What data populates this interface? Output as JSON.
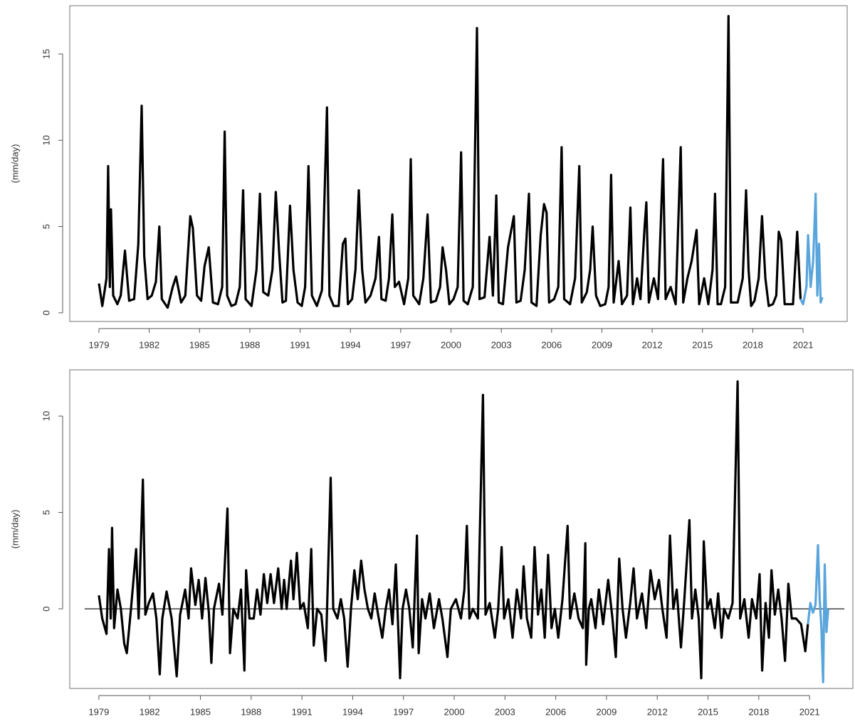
{
  "chart_data": [
    {
      "type": "line",
      "ylabel": "(mm/day)",
      "xlim": [
        1977.26,
        2023.63
      ],
      "ylim": [
        -0.5,
        17.8
      ],
      "xticks": [
        1979,
        1982,
        1985,
        1988,
        1991,
        1994,
        1997,
        2000,
        2003,
        2006,
        2009,
        2012,
        2015,
        2018,
        2021
      ],
      "yticks": [
        0,
        5,
        10,
        15
      ],
      "series": [
        {
          "color": "#000000",
          "x": [
            1979.0,
            1979.2,
            1979.45,
            1979.55,
            1979.65,
            1979.72,
            1979.85,
            1980.1,
            1980.3,
            1980.55,
            1980.8,
            1981.1,
            1981.35,
            1981.55,
            1981.7,
            1981.9,
            1982.15,
            1982.4,
            1982.6,
            1982.75,
            1983.1,
            1983.4,
            1983.6,
            1983.9,
            1984.15,
            1984.45,
            1984.6,
            1984.85,
            1985.1,
            1985.3,
            1985.55,
            1985.8,
            1986.1,
            1986.35,
            1986.5,
            1986.65,
            1986.9,
            1987.15,
            1987.4,
            1987.6,
            1987.75,
            1988.1,
            1988.4,
            1988.6,
            1988.8,
            1989.1,
            1989.35,
            1989.55,
            1989.75,
            1989.95,
            1990.15,
            1990.4,
            1990.6,
            1990.85,
            1991.1,
            1991.3,
            1991.5,
            1991.7,
            1992.0,
            1992.3,
            1992.6,
            1992.75,
            1993.0,
            1993.3,
            1993.55,
            1993.7,
            1993.85,
            1994.1,
            1994.3,
            1994.5,
            1994.7,
            1994.9,
            1995.2,
            1995.5,
            1995.7,
            1995.85,
            1996.1,
            1996.3,
            1996.5,
            1996.65,
            1996.9,
            1997.2,
            1997.45,
            1997.6,
            1997.75,
            1998.1,
            1998.35,
            1998.6,
            1998.8,
            1999.1,
            1999.35,
            1999.5,
            1999.7,
            1999.9,
            2000.15,
            2000.4,
            2000.6,
            2000.75,
            2001.0,
            2001.3,
            2001.55,
            2001.7,
            2002.0,
            2002.3,
            2002.5,
            2002.7,
            2002.85,
            2003.1,
            2003.4,
            2003.75,
            2003.9,
            2004.15,
            2004.4,
            2004.65,
            2004.8,
            2005.1,
            2005.35,
            2005.55,
            2005.7,
            2005.85,
            2006.15,
            2006.4,
            2006.6,
            2006.75,
            2007.1,
            2007.4,
            2007.65,
            2007.8,
            2008.1,
            2008.3,
            2008.45,
            2008.65,
            2008.9,
            2009.2,
            2009.4,
            2009.55,
            2009.7,
            2010.0,
            2010.2,
            2010.5,
            2010.7,
            2010.85,
            2011.1,
            2011.3,
            2011.55,
            2011.65,
            2011.8,
            2012.1,
            2012.35,
            2012.65,
            2012.8,
            2013.1,
            2013.4,
            2013.7,
            2013.85,
            2014.1,
            2014.35,
            2014.65,
            2014.8,
            2015.1,
            2015.35,
            2015.6,
            2015.75,
            2015.9,
            2016.1,
            2016.35,
            2016.55,
            2016.7,
            2017.1,
            2017.4,
            2017.6,
            2017.75,
            2017.9,
            2018.1,
            2018.35,
            2018.55,
            2018.75,
            2018.95,
            2019.2,
            2019.4,
            2019.55,
            2019.7,
            2019.9,
            2020.15,
            2020.4,
            2020.65,
            2020.85
          ],
          "values": [
            1.7,
            0.4,
            2.0,
            8.5,
            1.5,
            6.0,
            1.0,
            0.5,
            1.0,
            3.6,
            0.7,
            0.8,
            4.0,
            12.0,
            3.3,
            0.8,
            1.0,
            1.8,
            5.0,
            0.8,
            0.3,
            1.5,
            2.1,
            0.6,
            1.0,
            5.6,
            4.9,
            1.0,
            0.7,
            2.7,
            3.8,
            0.6,
            0.5,
            1.5,
            10.5,
            1.0,
            0.4,
            0.5,
            1.5,
            7.1,
            0.8,
            0.4,
            2.5,
            6.9,
            1.2,
            1.0,
            2.5,
            7.0,
            3.5,
            0.6,
            0.7,
            6.2,
            2.5,
            0.6,
            0.4,
            1.5,
            8.5,
            1.0,
            0.4,
            1.3,
            11.9,
            1.0,
            0.4,
            0.4,
            4.0,
            4.3,
            0.5,
            0.8,
            2.5,
            7.1,
            2.5,
            0.6,
            1.0,
            2.0,
            4.4,
            0.8,
            0.7,
            2.0,
            5.7,
            1.5,
            1.8,
            0.5,
            2.0,
            8.9,
            1.0,
            0.5,
            2.0,
            5.7,
            0.6,
            0.7,
            1.5,
            3.8,
            2.5,
            0.5,
            0.8,
            1.5,
            9.3,
            0.7,
            0.5,
            1.5,
            16.5,
            0.8,
            0.9,
            4.4,
            1.0,
            6.8,
            0.6,
            0.5,
            3.8,
            5.6,
            0.6,
            0.7,
            2.5,
            6.9,
            0.6,
            0.4,
            4.5,
            6.3,
            5.8,
            0.6,
            0.8,
            1.5,
            9.6,
            0.8,
            0.5,
            2.0,
            8.5,
            0.6,
            1.2,
            2.5,
            5.0,
            1.0,
            0.4,
            0.5,
            1.5,
            8.0,
            0.6,
            3.0,
            0.5,
            1.0,
            6.1,
            0.5,
            2.0,
            0.8,
            5.0,
            6.4,
            0.6,
            2.0,
            0.8,
            8.9,
            0.8,
            1.5,
            0.5,
            9.6,
            0.6,
            2.0,
            3.0,
            4.8,
            0.5,
            2.0,
            0.5,
            2.5,
            6.9,
            0.5,
            0.5,
            1.5,
            17.2,
            0.6,
            0.6,
            2.0,
            7.1,
            2.5,
            0.4,
            0.7,
            2.0,
            5.6,
            2.0,
            0.4,
            0.5,
            1.0,
            4.7,
            4.2,
            0.5,
            0.5,
            0.5,
            4.7,
            0.8
          ]
        },
        {
          "color": "#5aa5dc",
          "x": [
            2020.85,
            2021.0,
            2021.2,
            2021.3,
            2021.45,
            2021.6,
            2021.75,
            2021.85,
            2021.95,
            2022.05,
            2022.15
          ],
          "values": [
            0.8,
            0.5,
            1.5,
            4.5,
            1.5,
            3.0,
            6.9,
            1.0,
            4.0,
            0.6,
            0.9
          ]
        }
      ]
    },
    {
      "type": "line",
      "ylabel": "(mm/day)",
      "xlim": [
        1977.28,
        2023.56
      ],
      "ylim": [
        -4.13,
        12.4
      ],
      "hline": 0,
      "xticks": [
        1979,
        1982,
        1985,
        1988,
        1991,
        1994,
        1997,
        2000,
        2003,
        2006,
        2009,
        2012,
        2015,
        2018,
        2021
      ],
      "yticks": [
        0,
        5,
        10
      ],
      "series": [
        {
          "color": "#000000",
          "x": [
            1979.0,
            1979.2,
            1979.45,
            1979.6,
            1979.7,
            1979.78,
            1979.9,
            1980.1,
            1980.3,
            1980.5,
            1980.65,
            1980.9,
            1981.2,
            1981.35,
            1981.6,
            1981.75,
            1981.95,
            1982.2,
            1982.4,
            1982.6,
            1982.75,
            1983.0,
            1983.3,
            1983.6,
            1983.8,
            1984.1,
            1984.3,
            1984.45,
            1984.7,
            1984.9,
            1985.1,
            1985.3,
            1985.5,
            1985.65,
            1985.8,
            1986.1,
            1986.3,
            1986.6,
            1986.75,
            1986.95,
            1987.2,
            1987.4,
            1987.6,
            1987.7,
            1987.9,
            1988.15,
            1988.35,
            1988.55,
            1988.75,
            1988.95,
            1989.15,
            1989.35,
            1989.6,
            1989.8,
            1989.95,
            1990.1,
            1990.35,
            1990.5,
            1990.7,
            1990.9,
            1991.1,
            1991.35,
            1991.55,
            1991.7,
            1991.9,
            1992.15,
            1992.4,
            1992.7,
            1992.85,
            1993.1,
            1993.3,
            1993.5,
            1993.7,
            1993.9,
            1994.1,
            1994.3,
            1994.5,
            1994.7,
            1994.9,
            1995.1,
            1995.3,
            1995.5,
            1995.75,
            1995.95,
            1996.15,
            1996.35,
            1996.55,
            1996.8,
            1996.95,
            1997.15,
            1997.35,
            1997.55,
            1997.8,
            1997.9,
            1998.1,
            1998.3,
            1998.55,
            1998.8,
            1999.1,
            1999.3,
            1999.6,
            1999.8,
            2000.1,
            2000.4,
            2000.6,
            2000.75,
            2000.9,
            2001.1,
            2001.4,
            2001.7,
            2001.85,
            2002.1,
            2002.4,
            2002.6,
            2002.8,
            2002.95,
            2003.2,
            2003.45,
            2003.7,
            2003.95,
            2004.1,
            2004.3,
            2004.55,
            2004.75,
            2004.95,
            2005.15,
            2005.35,
            2005.55,
            2005.75,
            2005.95,
            2006.15,
            2006.4,
            2006.7,
            2006.85,
            2007.1,
            2007.35,
            2007.6,
            2007.75,
            2007.8,
            2007.95,
            2008.1,
            2008.35,
            2008.55,
            2008.8,
            2009.1,
            2009.35,
            2009.55,
            2009.75,
            2009.95,
            2010.15,
            2010.4,
            2010.6,
            2010.8,
            2011.1,
            2011.35,
            2011.6,
            2011.85,
            2012.1,
            2012.3,
            2012.55,
            2012.75,
            2012.95,
            2013.15,
            2013.4,
            2013.6,
            2013.9,
            2014.05,
            2014.25,
            2014.45,
            2014.6,
            2014.75,
            2014.95,
            2015.15,
            2015.4,
            2015.6,
            2015.8,
            2015.95,
            2016.2,
            2016.45,
            2016.75,
            2016.9,
            2017.15,
            2017.4,
            2017.6,
            2017.85,
            2018.05,
            2018.2,
            2018.4,
            2018.6,
            2018.75,
            2018.95,
            2019.15,
            2019.35,
            2019.55,
            2019.75,
            2019.95,
            2020.2,
            2020.5,
            2020.75,
            2020.9
          ],
          "values": [
            0.7,
            -0.5,
            -1.3,
            3.1,
            -0.5,
            4.2,
            -1.0,
            1.0,
            0.0,
            -1.8,
            -2.3,
            0.0,
            3.1,
            -0.5,
            6.7,
            -0.3,
            0.3,
            0.8,
            -0.5,
            -3.4,
            -0.5,
            0.9,
            -0.5,
            -3.5,
            -0.3,
            1.0,
            -0.5,
            2.1,
            0.2,
            1.5,
            -0.5,
            1.6,
            -0.2,
            -2.8,
            0.0,
            1.3,
            -0.3,
            5.2,
            -2.3,
            0.0,
            -0.5,
            1.0,
            -3.2,
            2.0,
            -0.5,
            -0.5,
            1.0,
            -0.3,
            1.8,
            0.3,
            1.8,
            0.3,
            2.1,
            0.0,
            1.5,
            0.0,
            2.5,
            0.5,
            2.9,
            0.0,
            0.3,
            -1.0,
            3.1,
            -1.9,
            0.0,
            -0.3,
            -2.7,
            6.8,
            0.0,
            -0.5,
            0.5,
            -0.5,
            -3.0,
            0.0,
            2.0,
            0.5,
            2.5,
            1.0,
            0.0,
            -0.5,
            0.8,
            -0.3,
            -1.5,
            0.0,
            1.0,
            -0.8,
            2.3,
            -3.6,
            0.0,
            1.0,
            0.0,
            -2.0,
            3.8,
            -2.3,
            0.5,
            -0.5,
            0.8,
            -1.0,
            0.5,
            -0.5,
            -2.5,
            0.0,
            0.5,
            -0.5,
            1.0,
            4.3,
            -0.5,
            0.0,
            -0.5,
            11.1,
            -0.3,
            0.3,
            -1.5,
            0.0,
            3.2,
            -0.5,
            0.5,
            -1.5,
            1.0,
            -0.5,
            2.2,
            -0.5,
            -1.5,
            3.2,
            -0.3,
            1.0,
            -1.5,
            2.8,
            -1.0,
            0.0,
            -1.5,
            0.5,
            4.3,
            -0.5,
            0.8,
            -0.5,
            -1.0,
            3.4,
            -2.9,
            0.0,
            0.5,
            -1.0,
            1.0,
            -0.8,
            1.5,
            -0.5,
            -2.5,
            2.6,
            0.0,
            -1.5,
            0.3,
            2.1,
            -0.5,
            0.8,
            -1.0,
            2.0,
            0.5,
            1.5,
            0.0,
            -1.5,
            3.8,
            0.0,
            1.0,
            -2.0,
            0.5,
            4.6,
            -0.5,
            1.0,
            -0.5,
            -3.6,
            3.5,
            0.0,
            0.5,
            -1.0,
            0.8,
            -1.5,
            0.0,
            -0.5,
            0.3,
            11.8,
            -0.5,
            0.5,
            -1.5,
            0.5,
            -0.5,
            1.8,
            -3.2,
            0.3,
            -1.5,
            2.0,
            -0.3,
            1.0,
            -0.5,
            -2.7,
            1.3,
            -0.5,
            -0.5,
            -0.8,
            -2.2,
            -0.8
          ]
        },
        {
          "color": "#5aa5dc",
          "x": [
            2020.9,
            2021.05,
            2021.2,
            2021.35,
            2021.5,
            2021.6,
            2021.7,
            2021.8,
            2021.9,
            2022.0,
            2022.1
          ],
          "values": [
            -0.8,
            0.3,
            -0.2,
            0.2,
            3.3,
            0.5,
            -1.0,
            -3.8,
            2.3,
            -1.2,
            0.0
          ]
        }
      ]
    }
  ]
}
